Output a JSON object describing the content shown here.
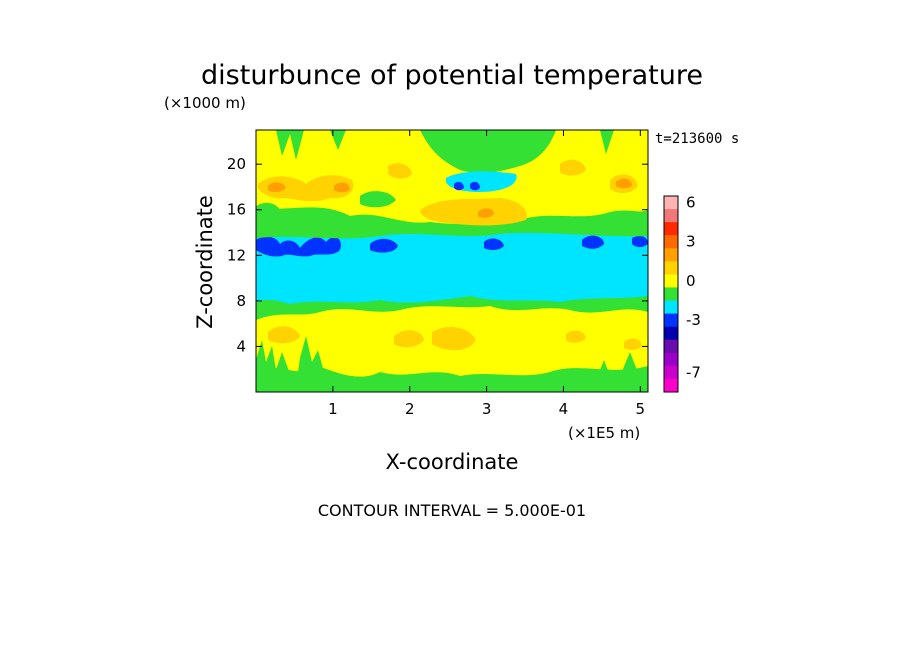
{
  "chart_data": {
    "type": "heatmap",
    "title": "disturbunce of potential temperature",
    "xlabel": "X-coordinate",
    "ylabel": "Z-coordinate",
    "x_unit": "(×1E5 m)",
    "y_unit": "(×1000 m)",
    "time_label": "t=213600 s",
    "contour_interval_label": "CONTOUR INTERVAL = 5.000E-01",
    "xlim": [
      0,
      5.1
    ],
    "ylim": [
      0,
      23
    ],
    "x_ticks": [
      1,
      2,
      3,
      4,
      5
    ],
    "y_ticks": [
      4,
      8,
      12,
      16,
      20
    ],
    "colorbar": {
      "levels": [
        6,
        5,
        4,
        3,
        2,
        1,
        0,
        -1,
        -2,
        -3,
        -4,
        -5,
        -6,
        -7,
        -8
      ],
      "colors": [
        "#ffb4b4",
        "#f07878",
        "#ff2a00",
        "#ff6a00",
        "#ff9f00",
        "#ffd200",
        "#ffff00",
        "#33e033",
        "#00e5ff",
        "#0033ff",
        "#0000b0",
        "#6a0dad",
        "#9b00c8",
        "#cc00cc",
        "#ff00cc"
      ],
      "tick_labels": [
        "6",
        "3",
        "0",
        "-3",
        "-7"
      ],
      "tick_values": [
        6,
        3,
        0,
        -3,
        -7
      ]
    },
    "bands": [
      {
        "z": [
          0,
          1.6
        ],
        "dominant_value": -1
      },
      {
        "z": [
          1.6,
          6.8
        ],
        "dominant_value": 0,
        "patches_value": 1
      },
      {
        "z": [
          6.8,
          8.4
        ],
        "dominant_value": -1
      },
      {
        "z": [
          8.4,
          13.6
        ],
        "dominant_value": -2,
        "cores_value": -3
      },
      {
        "z": [
          13.6,
          15.2
        ],
        "dominant_value": -1
      },
      {
        "z": [
          15.2,
          17
        ],
        "dominant_value": 0,
        "peak_value": 2
      },
      {
        "z": [
          17,
          20
        ],
        "dominant_value": 0,
        "patches_value": 1
      },
      {
        "z": [
          20,
          23
        ],
        "dominant_value": 0,
        "patches_value": -1
      }
    ]
  }
}
